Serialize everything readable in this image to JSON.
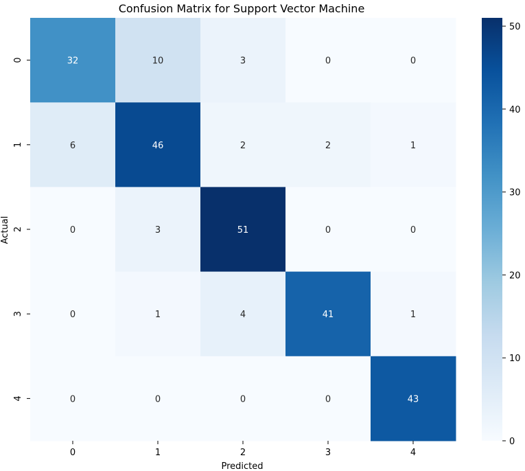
{
  "chart_data": {
    "type": "heatmap",
    "title": "Confusion Matrix for Support Vector Machine",
    "xlabel": "Predicted",
    "ylabel": "Actual",
    "x_categories": [
      "0",
      "1",
      "2",
      "3",
      "4"
    ],
    "y_categories": [
      "0",
      "1",
      "2",
      "3",
      "4"
    ],
    "values": [
      [
        32,
        10,
        3,
        0,
        0
      ],
      [
        6,
        46,
        2,
        2,
        1
      ],
      [
        0,
        3,
        51,
        0,
        0
      ],
      [
        0,
        1,
        4,
        41,
        1
      ],
      [
        0,
        0,
        0,
        0,
        43
      ]
    ],
    "colormap": "Blues",
    "colorbar": {
      "range": [
        0,
        51
      ],
      "ticks": [
        0,
        10,
        20,
        30,
        40,
        50
      ],
      "tick_labels": [
        "0",
        "10",
        "20",
        "30",
        "40",
        "50"
      ]
    },
    "annotated": true,
    "grid": false
  }
}
